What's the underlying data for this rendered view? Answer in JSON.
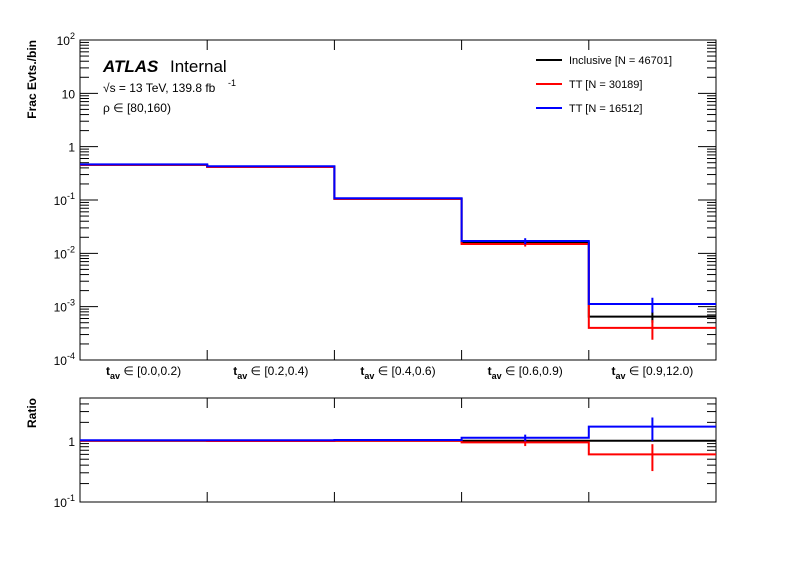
{
  "chart_data": {
    "type": "step",
    "top_panel": {
      "ylabel": "Frac Evts./bin",
      "yscale": "log",
      "ylim": [
        0.0001,
        100
      ],
      "yticks": [
        {
          "base": "10",
          "exp": "2"
        },
        {
          "base": "10",
          "exp": ""
        },
        {
          "base": "1",
          "exp": ""
        },
        {
          "base": "10",
          "exp": "-1"
        },
        {
          "base": "10",
          "exp": "-2"
        },
        {
          "base": "10",
          "exp": "-3"
        },
        {
          "base": "10",
          "exp": "-4"
        }
      ],
      "categories": [
        {
          "t": "t",
          "s": "av",
          "rest": " ∈ [0.0,0.2)"
        },
        {
          "t": "t",
          "s": "av",
          "rest": " ∈ [0.2,0.4)"
        },
        {
          "t": "t",
          "s": "av",
          "rest": " ∈ [0.4,0.6)"
        },
        {
          "t": "t",
          "s": "av",
          "rest": " ∈ [0.6,0.9)"
        },
        {
          "t": "t",
          "s": "av",
          "rest": " ∈ [0.9,12.0)"
        }
      ],
      "series": [
        {
          "name": "Inclusive [N = 46701]",
          "color": "#000000",
          "values": [
            0.455,
            0.42,
            0.105,
            0.016,
            0.00065
          ],
          "errors": [
            0,
            0,
            0,
            0.0012,
            0.00015
          ]
        },
        {
          "name": "TT [N = 30189]",
          "color": "#ff0000",
          "values": [
            0.455,
            0.415,
            0.105,
            0.015,
            0.0004
          ],
          "errors": [
            0,
            0,
            0,
            0.0016,
            0.00016
          ]
        },
        {
          "name": "TT [N = 16512]",
          "color": "#0000ff",
          "values": [
            0.465,
            0.43,
            0.108,
            0.017,
            0.00112
          ],
          "errors": [
            0,
            0,
            0,
            0.0022,
            0.00035
          ]
        }
      ]
    },
    "ratio_panel": {
      "ylabel": "Ratio",
      "yscale": "log",
      "ylim": [
        0.1,
        5
      ],
      "yticks": [
        {
          "base": "1",
          "exp": ""
        },
        {
          "base": "10",
          "exp": "-1"
        }
      ],
      "series": [
        {
          "name": "Inclusive [N = 46701]",
          "color": "#000000",
          "values": [
            1,
            1,
            1,
            1,
            1
          ],
          "errors": [
            0,
            0,
            0,
            0,
            0
          ]
        },
        {
          "name": "TT [N = 30189]",
          "color": "#ff0000",
          "values": [
            1.0,
            0.99,
            1.0,
            0.94,
            0.6
          ],
          "errors": [
            0,
            0,
            0,
            0.12,
            0.28
          ]
        },
        {
          "name": "TT [N = 16512]",
          "color": "#0000ff",
          "values": [
            1.02,
            1.02,
            1.03,
            1.12,
            1.7
          ],
          "errors": [
            0,
            0,
            0,
            0.14,
            0.7
          ]
        }
      ]
    },
    "annotations": {
      "atlas": "ATLAS",
      "internal": "Internal",
      "energy": "√s = 13 TeV, 139.8 fb",
      "energy_exp": "-1",
      "rho": "ρ ∈ [80,160)"
    }
  }
}
